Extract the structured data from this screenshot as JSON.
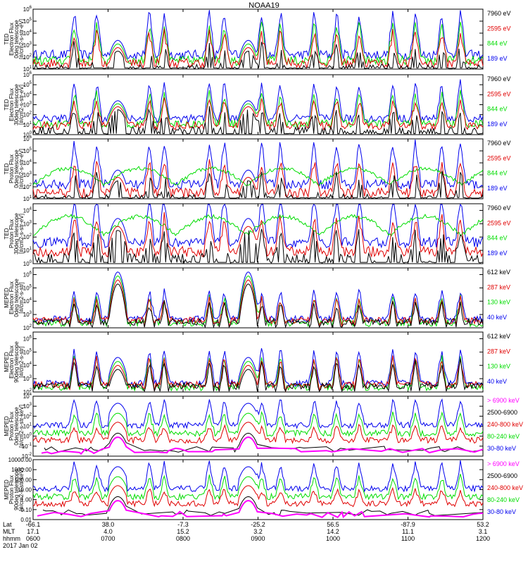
{
  "title": "NOAA19",
  "colors": {
    "black": "#000000",
    "red": "#e00000",
    "green": "#00dd00",
    "blue": "#0000ee",
    "magenta": "#ff00ff"
  },
  "chart_data": {
    "type": "line",
    "title": "NOAA19",
    "x_ticks": [
      "0600",
      "0700",
      "0800",
      "0900",
      "1000",
      "1100",
      "1200"
    ],
    "panels": [
      {
        "ylabel": [
          "TED",
          "Electron Flux",
          "0deg telescope",
          "[#/cm2-s-str-eV]"
        ],
        "yticks": [
          "10^1",
          "10^2",
          "10^3",
          "10^4",
          "10^5",
          "10^6"
        ],
        "ymin_exp": 1,
        "ymax_exp": 6,
        "legend": [
          {
            "label": "7960 eV",
            "color": "black"
          },
          {
            "label": "2595 eV",
            "color": "red"
          },
          {
            "label": "844 eV",
            "color": "green"
          },
          {
            "label": "189 eV",
            "color": "blue"
          }
        ]
      },
      {
        "ylabel": [
          "TED",
          "Electron Flux",
          "30deg telescope",
          "[#/cm2-s-str-eV]"
        ],
        "yticks": [
          "10^0",
          "10^1",
          "10^2",
          "10^3",
          "10^4",
          "10^5",
          "10^6"
        ],
        "ymin_exp": 0,
        "ymax_exp": 6,
        "legend": [
          {
            "label": "7960 eV",
            "color": "black"
          },
          {
            "label": "2595 eV",
            "color": "red"
          },
          {
            "label": "844 eV",
            "color": "green"
          },
          {
            "label": "189 eV",
            "color": "blue"
          }
        ]
      },
      {
        "ylabel": [
          "TED",
          "Proton Flux",
          "0deg telescope",
          "[#/cm2-s-str-eV]"
        ],
        "yticks": [
          "10^1",
          "10^2",
          "10^3",
          "10^4",
          "10^5",
          "10^6"
        ],
        "ymin_exp": 1,
        "ymax_exp": 6,
        "legend": [
          {
            "label": "7960 eV",
            "color": "black"
          },
          {
            "label": "2595 eV",
            "color": "red"
          },
          {
            "label": "844 eV",
            "color": "green"
          },
          {
            "label": "189 eV",
            "color": "blue"
          }
        ]
      },
      {
        "ylabel": [
          "TED",
          "Proton Flux",
          "30deg telescope",
          "[#/cm2-s-str-eV]"
        ],
        "yticks": [
          "10^0",
          "10^1",
          "10^2",
          "10^3",
          "10^4"
        ],
        "ymin_exp": 0,
        "ymax_exp": 4.5,
        "legend": [
          {
            "label": "7960 eV",
            "color": "black"
          },
          {
            "label": "2595 eV",
            "color": "red"
          },
          {
            "label": "844 eV",
            "color": "green"
          },
          {
            "label": "189 eV",
            "color": "blue"
          }
        ]
      },
      {
        "ylabel": [
          "MEPED",
          "Electron Flux",
          "0deg telescope",
          "[#/cm2-s-str]"
        ],
        "yticks": [
          "10^2",
          "10^3",
          "10^4",
          "10^5",
          "10^6"
        ],
        "ymin_exp": 2,
        "ymax_exp": 6.5,
        "legend": [
          {
            "label": "612 keV",
            "color": "black"
          },
          {
            "label": "287 keV",
            "color": "red"
          },
          {
            "label": "130 keV",
            "color": "green"
          },
          {
            "label": "40 keV",
            "color": "blue"
          }
        ]
      },
      {
        "ylabel": [
          "MEPED",
          "Electron Flux",
          "90deg telescope",
          "[#/cm2-s-str]"
        ],
        "yticks": [
          "10^2",
          "10^3",
          "10^4",
          "10^5",
          "10^6"
        ],
        "ymin_exp": 2,
        "ymax_exp": 6.5,
        "legend": [
          {
            "label": "612 keV",
            "color": "black"
          },
          {
            "label": "287 keV",
            "color": "red"
          },
          {
            "label": "130 keV",
            "color": "green"
          },
          {
            "label": "40 keV",
            "color": "blue"
          }
        ]
      },
      {
        "ylabel": [
          "MEPED",
          "Proton Flux",
          "0deg telescope",
          "[#/cm2-s-str-keV]"
        ],
        "yticks": [
          "10^-2",
          "10^-1",
          "10^0",
          "10^1",
          "10^2",
          "10^3",
          "10^4"
        ],
        "ymin_exp": -2,
        "ymax_exp": 4,
        "legend": [
          {
            "label": "> 6900 keV",
            "color": "magenta"
          },
          {
            "label": "2500-6900",
            "color": "black"
          },
          {
            "label": "240-800 keV",
            "color": "red"
          },
          {
            "label": "80-240 keV",
            "color": "green"
          },
          {
            "label": "30-80 keV",
            "color": "blue"
          }
        ]
      },
      {
        "ylabel": [
          "MEPED",
          "Proton Flux",
          "90deg telescope",
          "[#/cm2-s-str-keV]"
        ],
        "yticks": [
          "0.01",
          "0.10",
          "1.00",
          "10.00",
          "100.00",
          "1000.00",
          "10000.00"
        ],
        "ymin_exp": -2,
        "ymax_exp": 4,
        "legend": [
          {
            "label": "> 6900 keV",
            "color": "magenta"
          },
          {
            "label": "2500-6900",
            "color": "black"
          },
          {
            "label": "240-800 keV",
            "color": "red"
          },
          {
            "label": "80-240 keV",
            "color": "green"
          },
          {
            "label": "30-80 keV",
            "color": "blue"
          }
        ]
      }
    ],
    "footer": {
      "rows": [
        {
          "label": "Lat",
          "values": [
            "-66.1",
            "38.0",
            "-7.3",
            "-25.2",
            "56.5",
            "-87.9",
            "53.2"
          ]
        },
        {
          "label": "MLT",
          "values": [
            "17.1",
            "4.0",
            "15.2",
            "3.2",
            "14.2",
            "11.1",
            "3.1"
          ]
        },
        {
          "label": "hhmm",
          "values": [
            "0600",
            "0700",
            "0800",
            "0900",
            "1000",
            "1100",
            "1200"
          ]
        }
      ],
      "date": "2017 Jan 02"
    }
  }
}
